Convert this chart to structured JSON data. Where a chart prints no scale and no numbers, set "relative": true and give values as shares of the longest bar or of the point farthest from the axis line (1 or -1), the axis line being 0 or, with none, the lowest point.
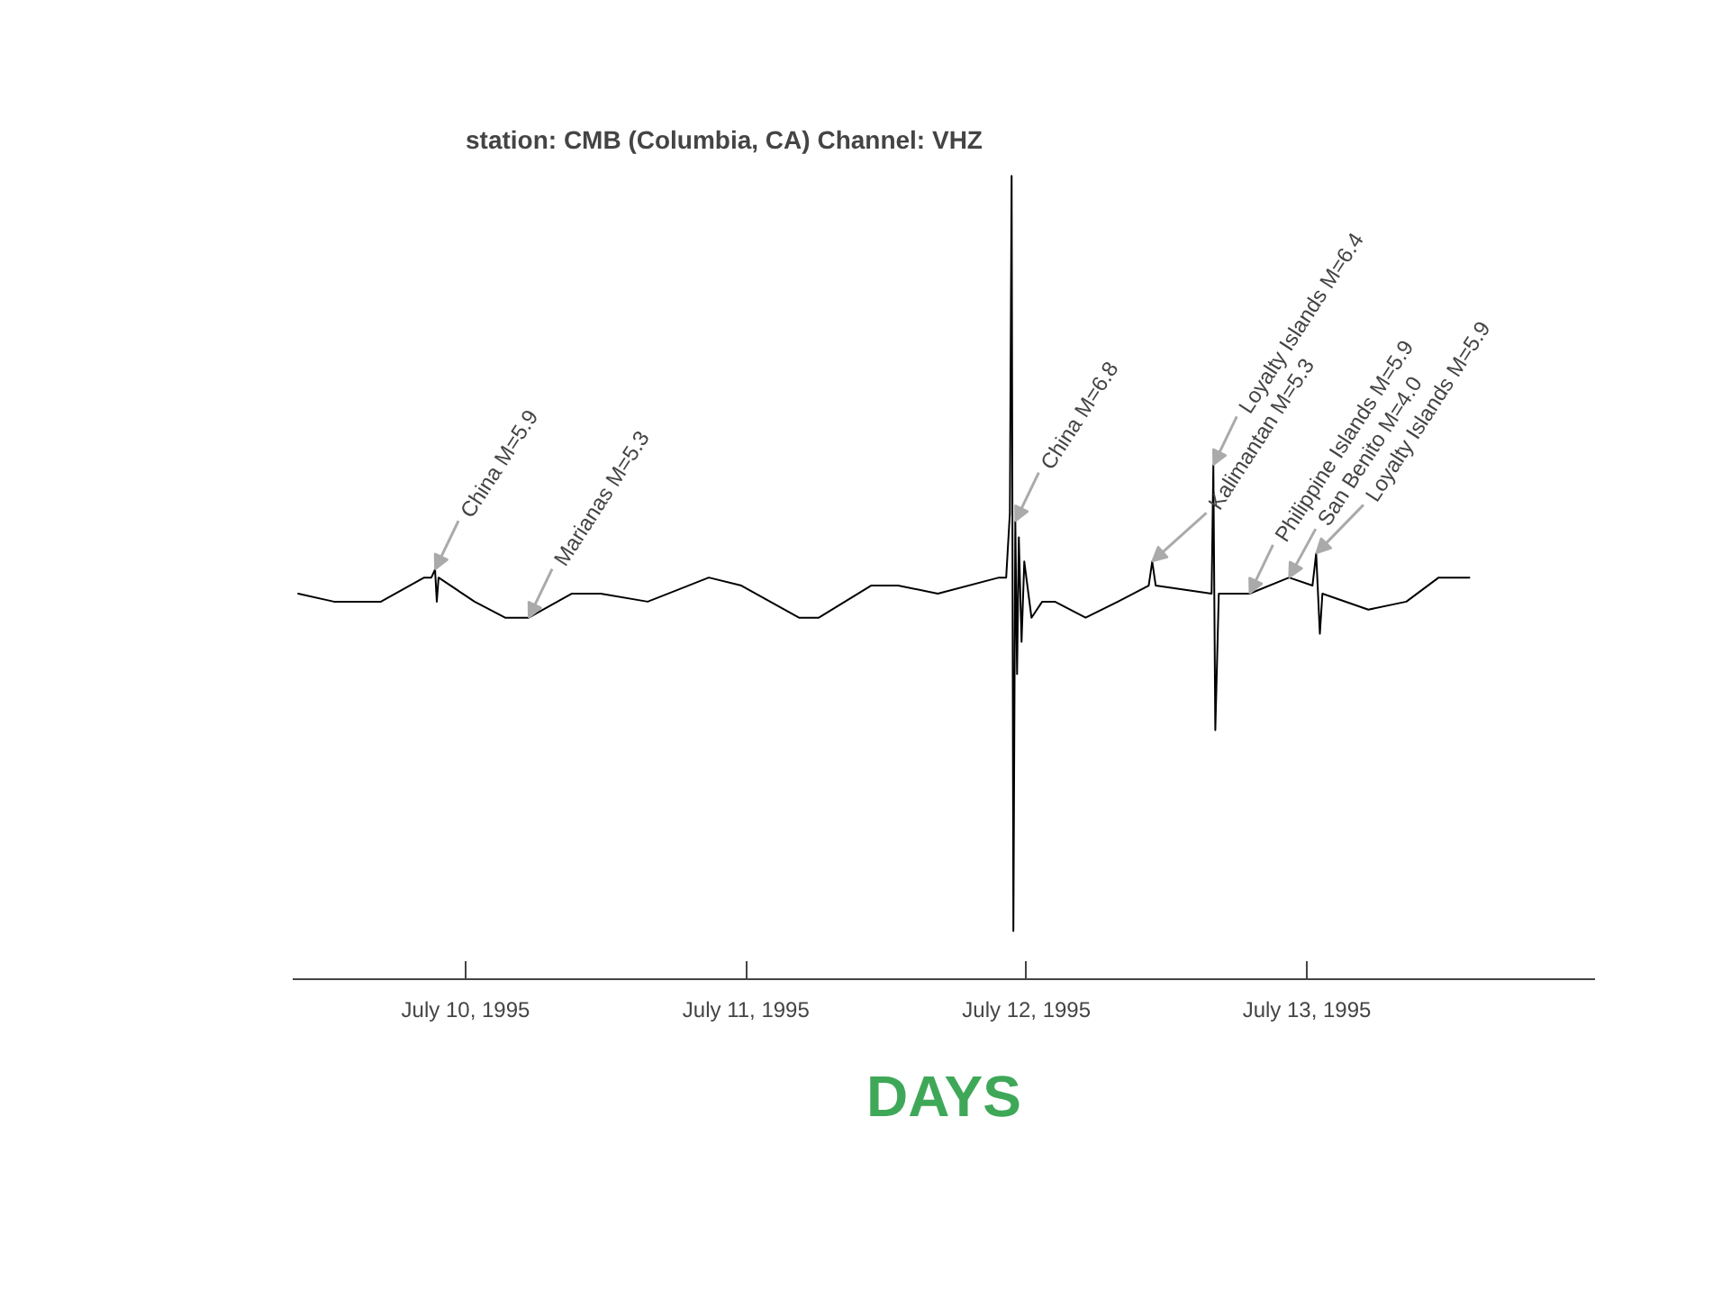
{
  "chart_data": {
    "type": "line",
    "title": "station: CMB (Columbia, CA)    Channel: VHZ",
    "xlabel": "DAYS",
    "relative": true,
    "xlim": [
      "1995-07-09T09:12",
      "1995-07-14T00:40"
    ],
    "xticks": [
      {
        "value": "1995-07-10",
        "label": "July 10, 1995"
      },
      {
        "value": "1995-07-11",
        "label": "July 11, 1995"
      },
      {
        "value": "1995-07-12",
        "label": "July 12, 1995"
      },
      {
        "value": "1995-07-13",
        "label": "July 13, 1995"
      }
    ],
    "x": [
      "1995-07-09T09:40",
      "1995-07-09T12:44",
      "1995-07-09T16:45",
      "1995-07-09T20:27",
      "1995-07-09T21:04",
      "1995-07-09T21:23",
      "1995-07-09T21:32",
      "1995-07-09T21:41",
      "1995-07-10T00:46",
      "1995-07-10T03:23",
      "1995-07-10T05:24",
      "1995-07-10T09:06",
      "1995-07-10T11:34",
      "1995-07-10T15:35",
      "1995-07-10T20:49",
      "1995-07-10T23:36",
      "1995-07-11T04:32",
      "1995-07-11T06:14",
      "1995-07-11T10:42",
      "1995-07-11T13:01",
      "1995-07-11T16:25",
      "1995-07-11T21:39",
      "1995-07-11T22:16",
      "1995-07-11T22:35",
      "1995-07-11T22:44",
      "1995-07-11T22:53",
      "1995-07-11T23:03",
      "1995-07-11T23:12",
      "1995-07-11T23:21",
      "1995-07-11T23:35",
      "1995-07-11T23:49",
      "1995-07-12T00:26",
      "1995-07-12T01:21",
      "1995-07-12T02:26",
      "1995-07-12T05:04",
      "1995-07-12T07:50",
      "1995-07-12T10:28",
      "1995-07-12T10:46",
      "1995-07-12T11:04",
      "1995-07-12T15:51",
      "1995-07-12T16:00",
      "1995-07-12T16:10",
      "1995-07-12T16:28",
      "1995-07-12T17:51",
      "1995-07-12T19:06",
      "1995-07-12T22:29",
      "1995-07-13T00:29",
      "1995-07-13T00:48",
      "1995-07-13T01:07",
      "1995-07-13T01:20",
      "1995-07-13T05:16",
      "1995-07-13T08:31",
      "1995-07-13T11:17",
      "1995-07-13T13:55"
    ],
    "series": [
      {
        "color": "#000000",
        "values": [
          0.48,
          0.47,
          0.47,
          0.5,
          0.5,
          0.51,
          0.47,
          0.5,
          0.47,
          0.45,
          0.45,
          0.48,
          0.48,
          0.47,
          0.5,
          0.49,
          0.45,
          0.45,
          0.49,
          0.49,
          0.48,
          0.5,
          0.5,
          0.58,
          1.0,
          0.06,
          0.57,
          0.38,
          0.55,
          0.42,
          0.52,
          0.45,
          0.47,
          0.47,
          0.45,
          0.47,
          0.49,
          0.52,
          0.49,
          0.48,
          0.64,
          0.31,
          0.48,
          0.48,
          0.48,
          0.5,
          0.49,
          0.53,
          0.43,
          0.48,
          0.46,
          0.47,
          0.5,
          0.5
        ]
      }
    ],
    "annotations": [
      {
        "text": "China M=5.9",
        "x": "1995-07-09T21:23",
        "y": 0.51
      },
      {
        "text": "Marianas M=5.3",
        "x": "1995-07-10T05:24",
        "y": 0.45
      },
      {
        "text": "China M=6.8",
        "x": "1995-07-11T23:03",
        "y": 0.57
      },
      {
        "text": "Kalimantan M=5.3",
        "x": "1995-07-12T10:46",
        "y": 0.52
      },
      {
        "text": "Loyalty Islands M=6.4",
        "x": "1995-07-12T16:00",
        "y": 0.64
      },
      {
        "text": "Philippine Islands M=5.9",
        "x": "1995-07-12T19:06",
        "y": 0.48
      },
      {
        "text": "San Benito M=4.0",
        "x": "1995-07-12T22:29",
        "y": 0.5
      },
      {
        "text": "Loyalty Islands M=5.9",
        "x": "1995-07-13T00:48",
        "y": 0.53
      }
    ]
  }
}
